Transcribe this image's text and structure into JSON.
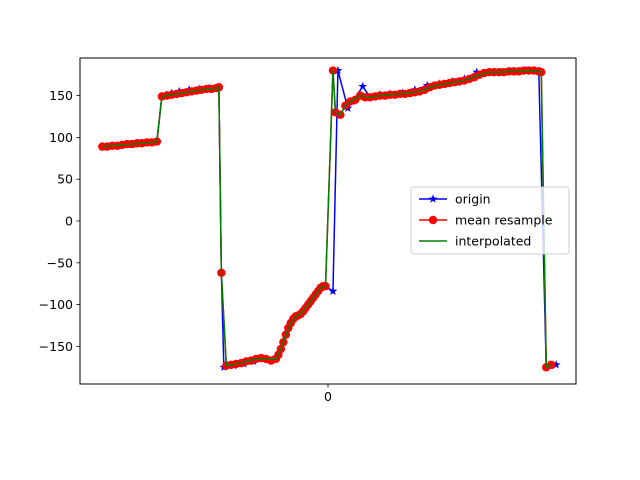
{
  "chart_data": {
    "type": "line",
    "title": "",
    "xlabel": "",
    "ylabel": "",
    "x_tick_labels": [
      "0"
    ],
    "y_ticks": [
      150,
      100,
      50,
      0,
      -50,
      -100,
      -150
    ],
    "y_tick_labels": [
      "150",
      "100",
      "50",
      "0",
      "−50",
      "−100",
      "−150"
    ],
    "xlim": [
      -1.0,
      1.0
    ],
    "ylim": [
      -195,
      195
    ],
    "grid": false,
    "legend_position": "center-right",
    "series": [
      {
        "name": "origin",
        "color": "#0000ff",
        "marker": "star",
        "x": [
          -0.91,
          -0.87,
          -0.83,
          -0.79,
          -0.75,
          -0.71,
          -0.69,
          -0.67,
          -0.65,
          -0.63,
          -0.6,
          -0.56,
          -0.52,
          -0.48,
          -0.44,
          -0.43,
          -0.42,
          -0.38,
          -0.34,
          -0.3,
          -0.26,
          -0.22,
          -0.21,
          -0.19,
          -0.17,
          -0.15,
          -0.13,
          -0.11,
          -0.09,
          -0.07,
          -0.05,
          -0.03,
          -0.01,
          0.02,
          0.04,
          0.08,
          0.1,
          0.14,
          0.17,
          0.19,
          0.21,
          0.25,
          0.3,
          0.35,
          0.4,
          0.45,
          0.5,
          0.55,
          0.6,
          0.65,
          0.7,
          0.75,
          0.8,
          0.85,
          0.88,
          0.9,
          0.92
        ],
        "y": [
          89,
          90,
          91,
          92,
          93,
          94,
          95,
          149,
          151,
          153,
          155,
          157,
          158,
          159,
          160,
          -62,
          -175,
          -173,
          -171,
          -168,
          -165,
          -166,
          -163,
          -153,
          -136,
          -122,
          -115,
          -112,
          -104,
          -96,
          -88,
          -80,
          -78,
          -84,
          180,
          135,
          143,
          161,
          148,
          149,
          151,
          152,
          153,
          157,
          162,
          164,
          167,
          170,
          178,
          178,
          178,
          179,
          180,
          179,
          -175,
          -173,
          -172
        ]
      },
      {
        "name": "mean resample",
        "color": "#ff0000",
        "marker": "circle",
        "x": [
          -0.91,
          -0.89,
          -0.87,
          -0.85,
          -0.83,
          -0.81,
          -0.79,
          -0.77,
          -0.75,
          -0.73,
          -0.71,
          -0.69,
          -0.67,
          -0.65,
          -0.63,
          -0.61,
          -0.59,
          -0.57,
          -0.55,
          -0.53,
          -0.51,
          -0.49,
          -0.47,
          -0.45,
          -0.44,
          -0.43,
          -0.41,
          -0.39,
          -0.37,
          -0.35,
          -0.33,
          -0.31,
          -0.29,
          -0.27,
          -0.25,
          -0.23,
          -0.21,
          -0.2,
          -0.19,
          -0.18,
          -0.17,
          -0.16,
          -0.15,
          -0.14,
          -0.13,
          -0.12,
          -0.11,
          -0.1,
          -0.09,
          -0.08,
          -0.07,
          -0.06,
          -0.05,
          -0.04,
          -0.03,
          -0.02,
          -0.01,
          0.02,
          0.03,
          0.05,
          0.07,
          0.09,
          0.11,
          0.13,
          0.15,
          0.17,
          0.19,
          0.21,
          0.23,
          0.25,
          0.27,
          0.29,
          0.31,
          0.33,
          0.35,
          0.37,
          0.39,
          0.41,
          0.43,
          0.45,
          0.47,
          0.49,
          0.51,
          0.53,
          0.55,
          0.57,
          0.59,
          0.61,
          0.63,
          0.65,
          0.67,
          0.69,
          0.71,
          0.73,
          0.75,
          0.77,
          0.79,
          0.81,
          0.83,
          0.85,
          0.86,
          0.88,
          0.9
        ],
        "y": [
          89,
          89,
          90,
          90,
          91,
          92,
          92,
          93,
          93,
          94,
          94,
          95,
          149,
          150,
          151,
          152,
          153,
          154,
          155,
          156,
          157,
          158,
          158,
          159,
          160,
          -62,
          -173,
          -172,
          -171,
          -170,
          -168,
          -167,
          -165,
          -164,
          -165,
          -167,
          -165,
          -160,
          -153,
          -145,
          -136,
          -128,
          -122,
          -117,
          -114,
          -113,
          -111,
          -108,
          -104,
          -100,
          -96,
          -92,
          -88,
          -84,
          -80,
          -78,
          -78,
          180,
          130,
          127,
          138,
          143,
          145,
          150,
          148,
          148,
          149,
          150,
          150,
          151,
          151,
          152,
          152,
          153,
          154,
          155,
          157,
          160,
          162,
          163,
          164,
          165,
          166,
          167,
          168,
          170,
          172,
          175,
          177,
          178,
          178,
          178,
          178,
          179,
          179,
          179,
          180,
          180,
          180,
          179,
          178,
          -175,
          -172
        ]
      },
      {
        "name": "interpolated",
        "color": "#008000",
        "marker": "none",
        "x": [
          -0.91,
          -0.87,
          -0.83,
          -0.79,
          -0.75,
          -0.71,
          -0.69,
          -0.67,
          -0.63,
          -0.59,
          -0.55,
          -0.51,
          -0.47,
          -0.45,
          -0.44,
          -0.43,
          -0.41,
          -0.37,
          -0.33,
          -0.29,
          -0.25,
          -0.21,
          -0.19,
          -0.17,
          -0.15,
          -0.13,
          -0.11,
          -0.09,
          -0.07,
          -0.05,
          -0.03,
          -0.01,
          0.02,
          0.03,
          0.05,
          0.07,
          0.09,
          0.13,
          0.17,
          0.21,
          0.25,
          0.29,
          0.33,
          0.37,
          0.41,
          0.45,
          0.49,
          0.53,
          0.57,
          0.61,
          0.65,
          0.69,
          0.73,
          0.77,
          0.81,
          0.85,
          0.86,
          0.88,
          0.9
        ],
        "y": [
          89,
          90,
          91,
          92,
          93,
          94,
          95,
          149,
          151,
          153,
          155,
          157,
          158,
          159,
          160,
          -62,
          -173,
          -171,
          -168,
          -165,
          -165,
          -165,
          -153,
          -136,
          -122,
          -114,
          -111,
          -104,
          -96,
          -88,
          -80,
          -78,
          180,
          130,
          127,
          138,
          143,
          150,
          148,
          150,
          151,
          152,
          153,
          155,
          160,
          163,
          165,
          167,
          170,
          175,
          178,
          178,
          179,
          179,
          180,
          179,
          178,
          -175,
          -172
        ]
      }
    ]
  }
}
